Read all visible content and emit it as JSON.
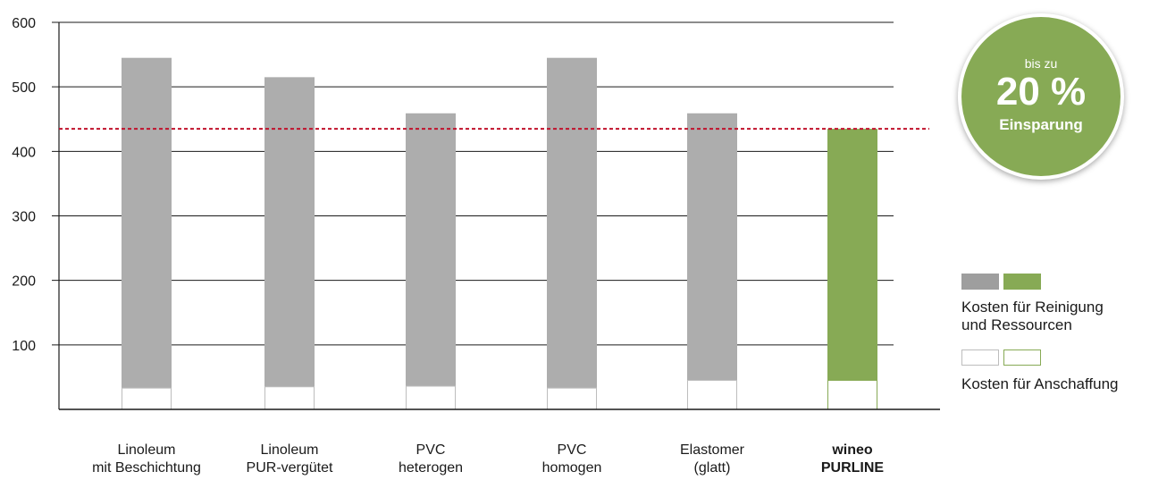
{
  "chart_data": {
    "type": "bar",
    "stacked": true,
    "categories": [
      [
        "Linoleum",
        "mit Beschichtung"
      ],
      [
        "Linoleum",
        "PUR-vergütet"
      ],
      [
        "PVC",
        "heterogen"
      ],
      [
        "PVC",
        "homogen"
      ],
      [
        "Elastomer",
        "(glatt)"
      ],
      [
        "wineo",
        "PURLINE"
      ]
    ],
    "highlight_index": 5,
    "series": [
      {
        "name": "Kosten für Anschaffung",
        "values": [
          33,
          35,
          36,
          33,
          45,
          45
        ]
      },
      {
        "name": "Kosten für Reinigung und Ressourcen",
        "values": [
          512,
          480,
          423,
          512,
          414,
          390
        ]
      }
    ],
    "totals": [
      545,
      515,
      459,
      545,
      459,
      435
    ],
    "reference_line": 435,
    "ylim": [
      0,
      600
    ],
    "yticks": [
      100,
      200,
      300,
      400,
      500,
      600
    ],
    "grid": true
  },
  "colors": {
    "gray": "#adadad",
    "green": "#87aa55",
    "reference": "#c0122c",
    "gray_outline": "#bdbdbd",
    "green_outline": "#87aa55"
  },
  "legend": {
    "reinigung_label": "Kosten für Reinigung\nund Ressourcen",
    "anschaffung_label": "Kosten für Anschaffung"
  },
  "badge": {
    "top": "bis zu",
    "value": "20 %",
    "bottom": "Einsparung"
  }
}
